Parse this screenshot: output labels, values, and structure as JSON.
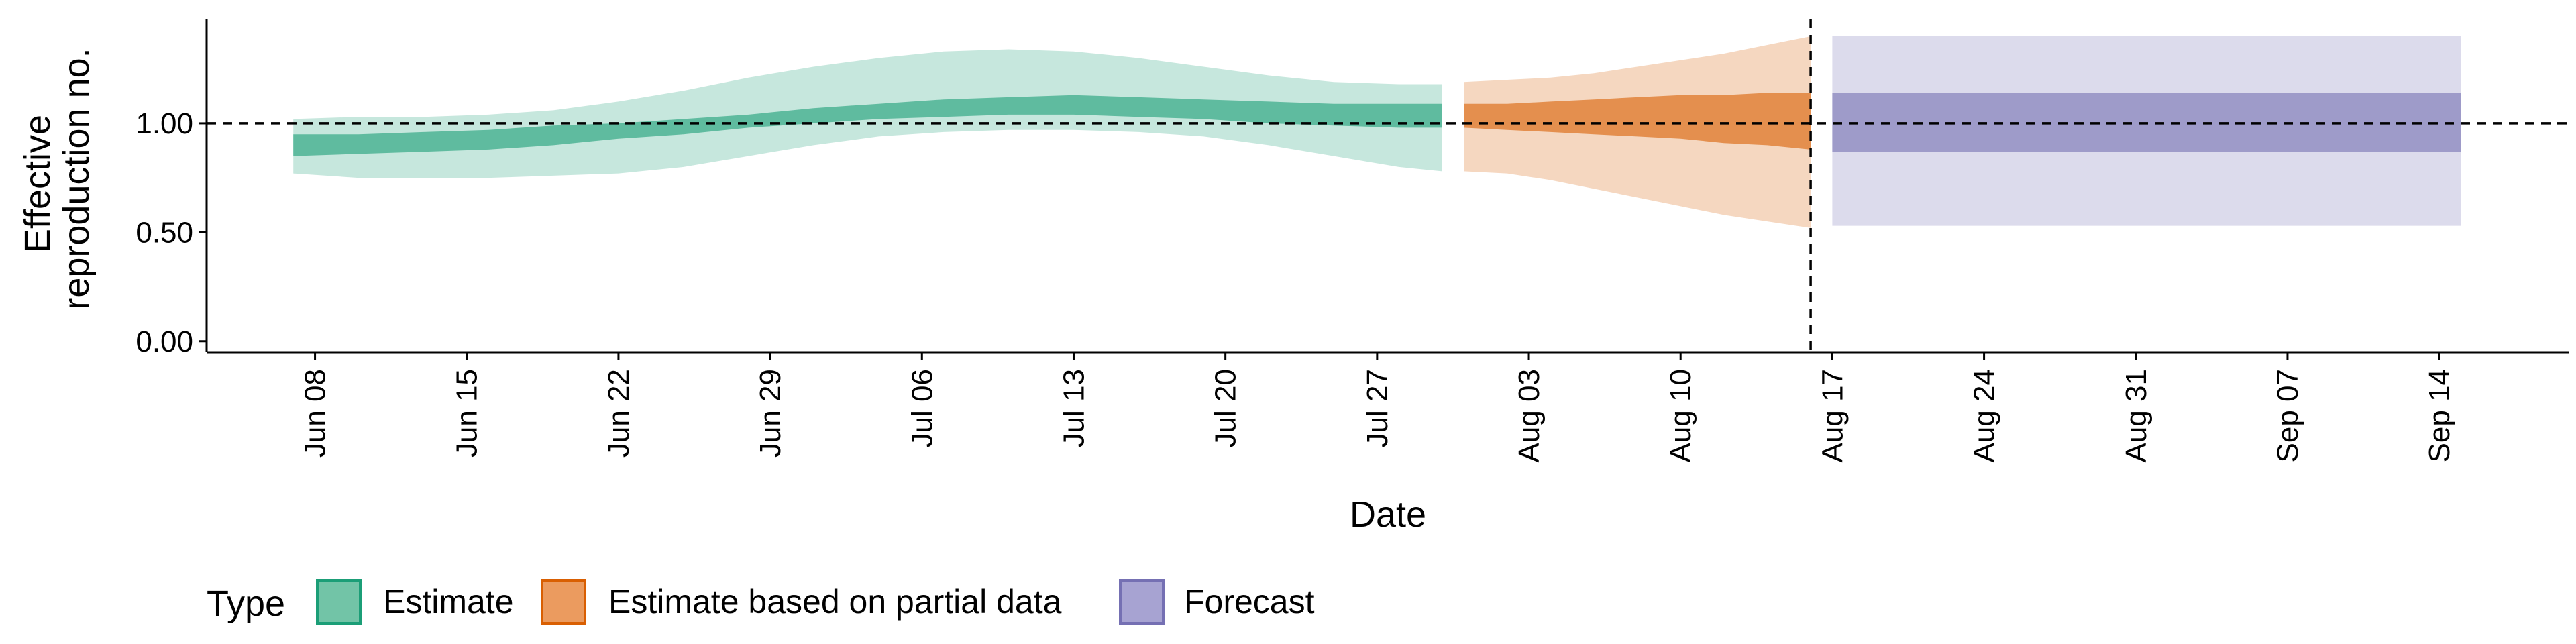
{
  "chart_data": {
    "type": "area",
    "xlabel": "Date",
    "ylabel": [
      "Effective",
      "reproduction no."
    ],
    "ylim": [
      -0.05,
      1.48
    ],
    "yticks": [
      {
        "value": 0.0,
        "label": "0.00"
      },
      {
        "value": 0.5,
        "label": "0.50"
      },
      {
        "value": 1.0,
        "label": "1.00"
      }
    ],
    "xlim": [
      "2020-06-03",
      "2020-09-20"
    ],
    "xticks": [
      {
        "date": "2020-06-08",
        "label": "Jun 08"
      },
      {
        "date": "2020-06-15",
        "label": "Jun 15"
      },
      {
        "date": "2020-06-22",
        "label": "Jun 22"
      },
      {
        "date": "2020-06-29",
        "label": "Jun 29"
      },
      {
        "date": "2020-07-06",
        "label": "Jul 06"
      },
      {
        "date": "2020-07-13",
        "label": "Jul 13"
      },
      {
        "date": "2020-07-20",
        "label": "Jul 20"
      },
      {
        "date": "2020-07-27",
        "label": "Jul 27"
      },
      {
        "date": "2020-08-03",
        "label": "Aug 03"
      },
      {
        "date": "2020-08-10",
        "label": "Aug 10"
      },
      {
        "date": "2020-08-17",
        "label": "Aug 17"
      },
      {
        "date": "2020-08-24",
        "label": "Aug 24"
      },
      {
        "date": "2020-08-31",
        "label": "Aug 31"
      },
      {
        "date": "2020-09-07",
        "label": "Sep 07"
      },
      {
        "date": "2020-09-14",
        "label": "Sep 14"
      }
    ],
    "reference_line": {
      "y": 1.0,
      "style": "dashed"
    },
    "vertical_line": {
      "date": "2020-08-16",
      "style": "dashed"
    },
    "legend": {
      "title": "Type",
      "position": "bottom-left",
      "entries": [
        {
          "label": "Estimate",
          "fill": "#72c4a7",
          "border": "#1b9e77"
        },
        {
          "label": "Estimate based on partial data",
          "fill": "#eb9b5f",
          "border": "#d95f02"
        },
        {
          "label": "Forecast",
          "fill": "#a7a3d2",
          "border": "#7570b3"
        }
      ]
    },
    "series": [
      {
        "name": "Estimate",
        "color": "#1b9e77",
        "outer_opacity": 0.25,
        "inner_opacity": 0.6,
        "x": [
          "2020-06-07",
          "2020-06-10",
          "2020-06-13",
          "2020-06-16",
          "2020-06-19",
          "2020-06-22",
          "2020-06-25",
          "2020-06-28",
          "2020-07-01",
          "2020-07-04",
          "2020-07-07",
          "2020-07-10",
          "2020-07-13",
          "2020-07-16",
          "2020-07-19",
          "2020-07-22",
          "2020-07-25",
          "2020-07-28",
          "2020-07-30"
        ],
        "outer_lower": [
          0.77,
          0.75,
          0.75,
          0.75,
          0.76,
          0.77,
          0.8,
          0.85,
          0.9,
          0.94,
          0.96,
          0.97,
          0.97,
          0.96,
          0.94,
          0.9,
          0.85,
          0.8,
          0.78
        ],
        "inner_lower": [
          0.85,
          0.86,
          0.87,
          0.88,
          0.9,
          0.93,
          0.95,
          0.98,
          1.0,
          1.02,
          1.03,
          1.04,
          1.04,
          1.03,
          1.02,
          1.0,
          0.99,
          0.98,
          0.98
        ],
        "inner_upper": [
          0.95,
          0.95,
          0.96,
          0.97,
          0.99,
          1.0,
          1.02,
          1.04,
          1.07,
          1.09,
          1.11,
          1.12,
          1.13,
          1.12,
          1.11,
          1.1,
          1.09,
          1.09,
          1.09
        ],
        "outer_upper": [
          1.02,
          1.03,
          1.03,
          1.04,
          1.06,
          1.1,
          1.15,
          1.21,
          1.26,
          1.3,
          1.33,
          1.34,
          1.33,
          1.3,
          1.26,
          1.22,
          1.19,
          1.18,
          1.18
        ]
      },
      {
        "name": "Estimate based on partial data",
        "color": "#d95f02",
        "outer_opacity": 0.25,
        "inner_opacity": 0.6,
        "x": [
          "2020-07-31",
          "2020-08-02",
          "2020-08-04",
          "2020-08-06",
          "2020-08-08",
          "2020-08-10",
          "2020-08-12",
          "2020-08-14",
          "2020-08-16"
        ],
        "outer_lower": [
          0.78,
          0.77,
          0.74,
          0.7,
          0.66,
          0.62,
          0.58,
          0.55,
          0.52
        ],
        "inner_lower": [
          0.98,
          0.97,
          0.96,
          0.95,
          0.94,
          0.93,
          0.91,
          0.9,
          0.88
        ],
        "inner_upper": [
          1.09,
          1.09,
          1.1,
          1.11,
          1.12,
          1.13,
          1.13,
          1.14,
          1.14
        ],
        "outer_upper": [
          1.19,
          1.2,
          1.21,
          1.23,
          1.26,
          1.29,
          1.32,
          1.36,
          1.4
        ]
      },
      {
        "name": "Forecast",
        "color": "#7570b3",
        "outer_opacity": 0.25,
        "inner_opacity": 0.6,
        "x": [
          "2020-08-17",
          "2020-09-15"
        ],
        "outer_lower": [
          0.53,
          0.53
        ],
        "inner_lower": [
          0.87,
          0.87
        ],
        "inner_upper": [
          1.14,
          1.14
        ],
        "outer_upper": [
          1.4,
          1.4
        ]
      }
    ]
  }
}
